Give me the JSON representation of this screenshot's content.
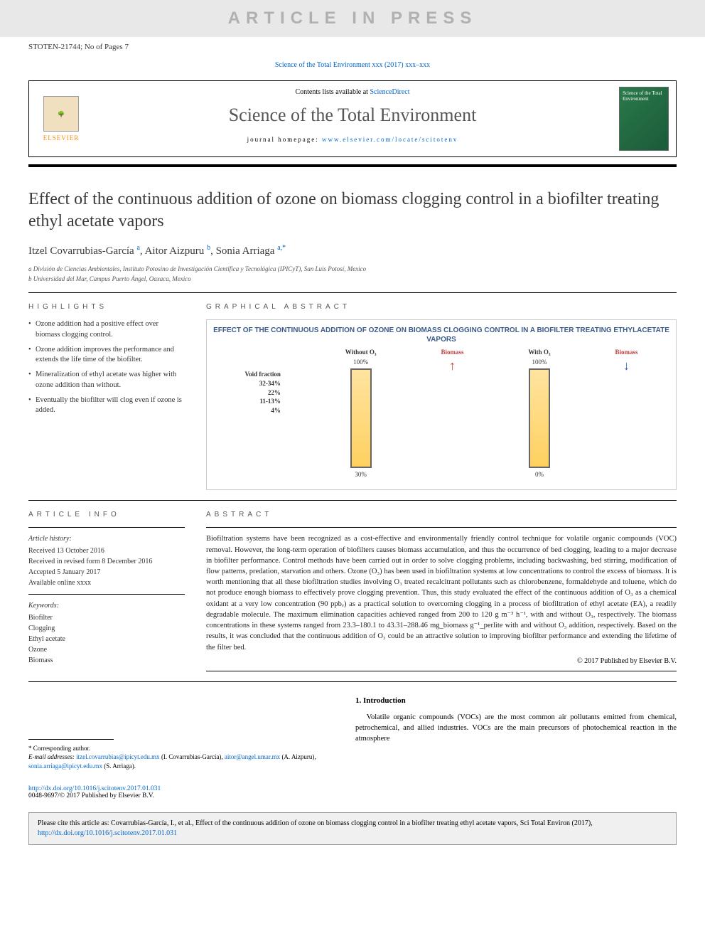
{
  "watermark": "ARTICLE IN PRESS",
  "article_id": "STOTEN-21744; No of Pages 7",
  "journal_ref": {
    "text": "Science of the Total Environment xxx (2017) xxx–xxx",
    "link_text": "Science of the Total Environment xxx (2017) xxx–xxx"
  },
  "header": {
    "contents_text": "Contents lists available at ",
    "contents_link": "ScienceDirect",
    "journal_title": "Science of the Total Environment",
    "homepage_label": "journal homepage: ",
    "homepage_url": "www.elsevier.com/locate/scitotenv",
    "publisher_label": "ELSEVIER",
    "cover_text": "Science of the Total Environment"
  },
  "title": "Effect of the continuous addition of ozone on biomass clogging control in a biofilter treating ethyl acetate vapors",
  "authors_html": "Itzel Covarrubias-García <sup>a</sup>, Aitor Aizpuru <sup>b</sup>, Sonia Arriaga <sup>a,*</sup>",
  "affiliations": [
    "a  División de Ciencias Ambientales, Instituto Potosino de Investigación Científica y Tecnológica (IPICyT), San Luis Potosí, Mexico",
    "b  Universidad del Mar, Campus Puerto Ángel, Oaxaca, Mexico"
  ],
  "highlights": {
    "heading": "HIGHLIGHTS",
    "items": [
      "Ozone addition had a positive effect over biomass clogging control.",
      "Ozone addition improves the performance and extends the life time of the biofilter.",
      "Mineralization of ethyl acetate was higher with ozone addition than without.",
      "Eventually the biofilter will clog even if ozone is added."
    ]
  },
  "graphical_abstract": {
    "heading": "GRAPHICAL ABSTRACT",
    "title": "EFFECT OF THE CONTINUOUS ADDITION OF OZONE ON BIOMASS CLOGGING CONTROL IN A BIOFILTER TREATING ETHYLACETATE VAPORS",
    "left_label": "Without O₃",
    "right_label": "With O₃",
    "top_pct": "100%",
    "bottom_left_pct": "30%",
    "bottom_right_pct": "0%",
    "biomass_label": "Biomass",
    "void_label": "Void fraction",
    "void_values": [
      "32-34%",
      "22%",
      "11-13%",
      "4%"
    ]
  },
  "article_info": {
    "heading": "ARTICLE INFO",
    "history_label": "Article history:",
    "history": [
      "Received 13 October 2016",
      "Received in revised form 8 December 2016",
      "Accepted 5 January 2017",
      "Available online xxxx"
    ],
    "keywords_label": "Keywords:",
    "keywords": [
      "Biofilter",
      "Clogging",
      "Ethyl acetate",
      "Ozone",
      "Biomass"
    ]
  },
  "abstract": {
    "heading": "ABSTRACT",
    "text": "Biofiltration systems have been recognized as a cost-effective and environmentally friendly control technique for volatile organic compounds (VOC) removal. However, the long-term operation of biofilters causes biomass accumulation, and thus the occurrence of bed clogging, leading to a major decrease in biofilter performance. Control methods have been carried out in order to solve clogging problems, including backwashing, bed stirring, modification of flow patterns, predation, starvation and others. Ozone (O₃) has been used in biofiltration systems at low concentrations to control the excess of biomass. It is worth mentioning that all these biofiltration studies involving O₃ treated recalcitrant pollutants such as chlorobenzene, formaldehyde and toluene, which do not produce enough biomass to effectively prove clogging prevention. Thus, this study evaluated the effect of the continuous addition of O₃ as a chemical oxidant at a very low concentration (90 ppbᵥ) as a practical solution to overcoming clogging in a process of biofiltration of ethyl acetate (EA), a readily degradable molecule. The maximum elimination capacities achieved ranged from 200 to 120 g m⁻³ h⁻¹, with and without O₃, respectively. The biomass concentrations in these systems ranged from 23.3–180.1 to 43.31–288.46 mg_biomass g⁻¹_perlite with and without O₃ addition, respectively. Based on the results, it was concluded that the continuous addition of O₃ could be an attractive solution to improving biofilter performance and extending the lifetime of the filter bed.",
    "copyright": "© 2017 Published by Elsevier B.V."
  },
  "introduction": {
    "heading": "1. Introduction",
    "text": "Volatile organic compounds (VOCs) are the most common air pollutants emitted from chemical, petrochemical, and allied industries. VOCs are the main precursors of photochemical reaction in the atmosphere"
  },
  "footnotes": {
    "corresponding": "* Corresponding author.",
    "emails_label": "E-mail addresses: ",
    "emails": [
      {
        "addr": "itzel.covarrubias@ipicyt.edu.mx",
        "who": "(I. Covarrubias-García)"
      },
      {
        "addr": "aitor@angel.umar.mx",
        "who": "(A. Aizpuru)"
      },
      {
        "addr": "sonia.arriaga@ipicyt.edu.mx",
        "who": "(S. Arriaga)."
      }
    ]
  },
  "doi": {
    "url": "http://dx.doi.org/10.1016/j.scitotenv.2017.01.031",
    "issn_line": "0048-9697/© 2017 Published by Elsevier B.V."
  },
  "citation_box": {
    "text_prefix": "Please cite this article as: Covarrubias-García, I., et al., Effect of the continuous addition of ozone on biomass clogging control in a biofilter treating ethyl acetate vapors, Sci Total Environ (2017), ",
    "link": "http://dx.doi.org/10.1016/j.scitotenv.2017.01.031"
  },
  "colors": {
    "link": "#0066cc",
    "watermark_bg": "#e8e8e8",
    "watermark_fg": "#b0b0b0",
    "heading_gray": "#555555",
    "citebox_bg": "#f0f0f0"
  }
}
